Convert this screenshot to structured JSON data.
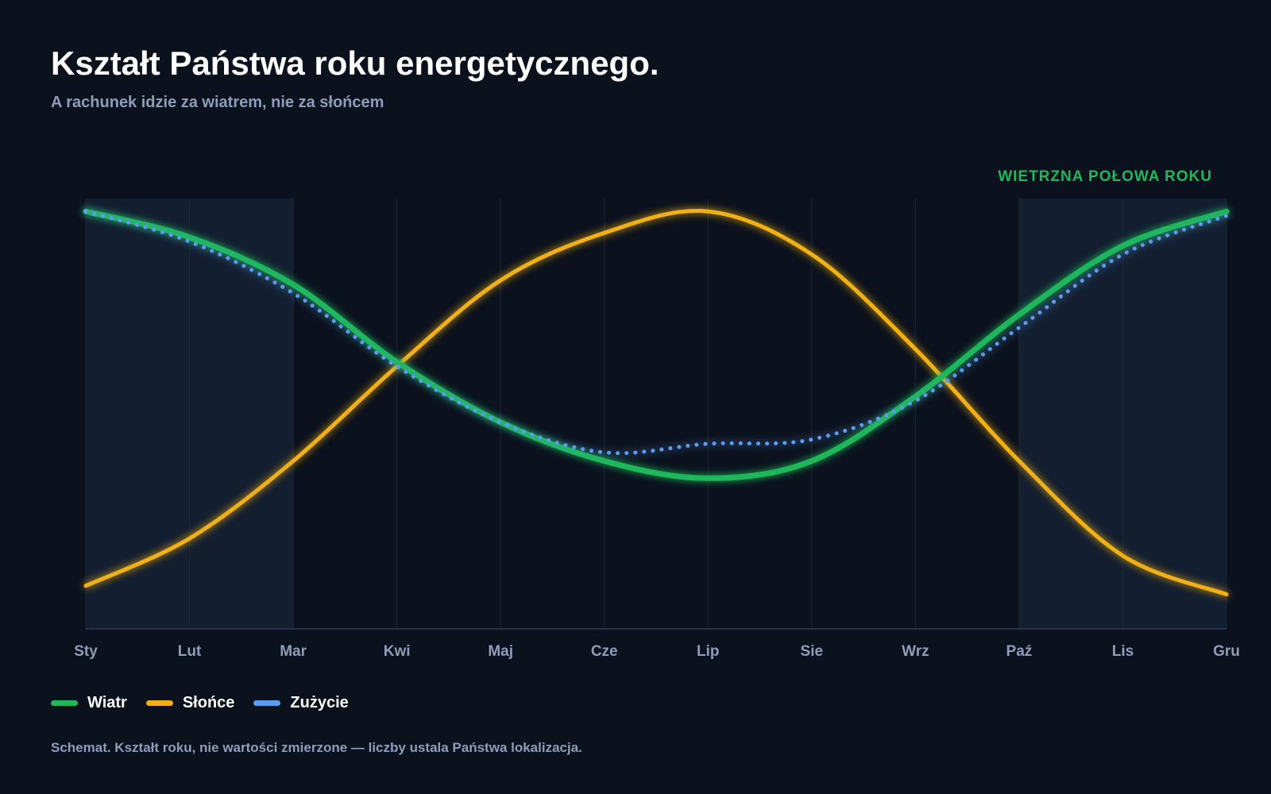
{
  "header": {
    "title": "Kształt Państwa roku energetycznego.",
    "subtitle": "A rachunek idzie za wiatrem, nie za słońcem"
  },
  "chart_data": {
    "type": "line",
    "categories": [
      "Sty",
      "Lut",
      "Mar",
      "Kwi",
      "Maj",
      "Cze",
      "Lip",
      "Sie",
      "Wrz",
      "Paź",
      "Lis",
      "Gru"
    ],
    "ylim": [
      0,
      100
    ],
    "grid": true,
    "legend_position": "bottom-left",
    "annotations": [
      {
        "text": "WIETRZNA POŁOWA ROKU",
        "color": "#1fb85a"
      }
    ],
    "highlight_bands": [
      {
        "from": "Sty",
        "to": "Mar"
      },
      {
        "from": "Paź",
        "to": "Gru"
      }
    ],
    "series": [
      {
        "name": "Wiatr",
        "color": "#1fb85a",
        "style": "solid",
        "values": [
          97,
          91,
          80,
          62,
          48,
          39,
          35,
          39,
          54,
          73,
          89,
          97
        ]
      },
      {
        "name": "Słońce",
        "color": "#f1b114",
        "style": "solid",
        "values": [
          10,
          21,
          39,
          61,
          81,
          92,
          97,
          87,
          65,
          39,
          17,
          8
        ]
      },
      {
        "name": "Zużycie",
        "color": "#5b9bf0",
        "style": "dotted",
        "values": [
          97,
          90,
          78,
          61,
          48,
          41,
          43,
          44,
          53,
          70,
          87,
          96
        ]
      }
    ]
  },
  "footnote": "Schemat. Kształt roku, nie wartości zmierzone — liczby ustala Państwa lokalizacja."
}
